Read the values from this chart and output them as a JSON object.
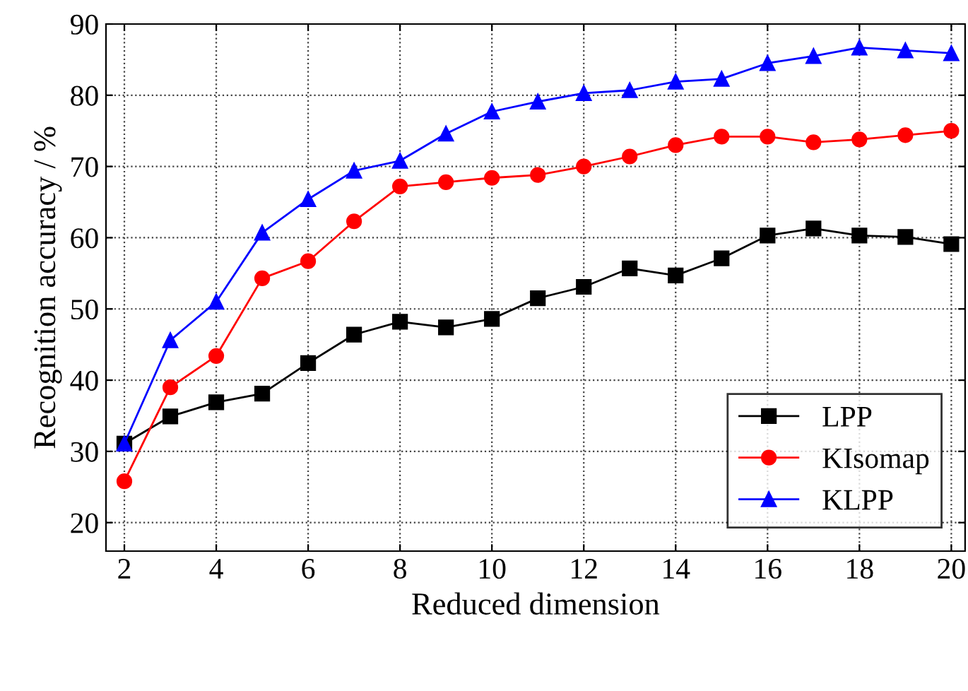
{
  "chart_data": {
    "type": "line",
    "xlabel": "Reduced dimension",
    "ylabel": "Recognition accuracy / %",
    "x": [
      2,
      3,
      4,
      5,
      6,
      7,
      8,
      9,
      10,
      11,
      12,
      13,
      14,
      15,
      16,
      17,
      18,
      19,
      20
    ],
    "series": [
      {
        "name": "LPP",
        "color": "#000000",
        "marker": "square",
        "values": [
          31.1,
          34.9,
          36.9,
          38.1,
          42.4,
          46.4,
          48.2,
          47.4,
          48.6,
          51.5,
          53.1,
          55.7,
          54.7,
          57.1,
          60.3,
          61.3,
          60.3,
          60.1,
          59.1
        ]
      },
      {
        "name": "KIsomap",
        "color": "#ff0000",
        "marker": "circle",
        "values": [
          25.8,
          39.0,
          43.4,
          54.3,
          56.7,
          62.3,
          67.2,
          67.8,
          68.4,
          68.8,
          70.0,
          71.4,
          73.0,
          74.2,
          74.2,
          73.4,
          73.8,
          74.4,
          75.0
        ]
      },
      {
        "name": "KLPP",
        "color": "#0000ff",
        "marker": "triangle",
        "values": [
          31.1,
          45.6,
          51.0,
          60.7,
          65.4,
          69.4,
          70.8,
          74.6,
          77.7,
          79.1,
          80.3,
          80.7,
          81.9,
          82.3,
          84.5,
          85.5,
          86.7,
          86.3,
          85.9
        ]
      }
    ],
    "xlim": [
      1.6,
      20.3
    ],
    "xticks": [
      2,
      4,
      6,
      8,
      10,
      12,
      14,
      16,
      18,
      20
    ],
    "ylim": [
      16,
      90
    ],
    "yticks": [
      20,
      30,
      40,
      50,
      60,
      70,
      80,
      90
    ],
    "grid": true,
    "legend": "bottom right",
    "line_style": "solid"
  }
}
